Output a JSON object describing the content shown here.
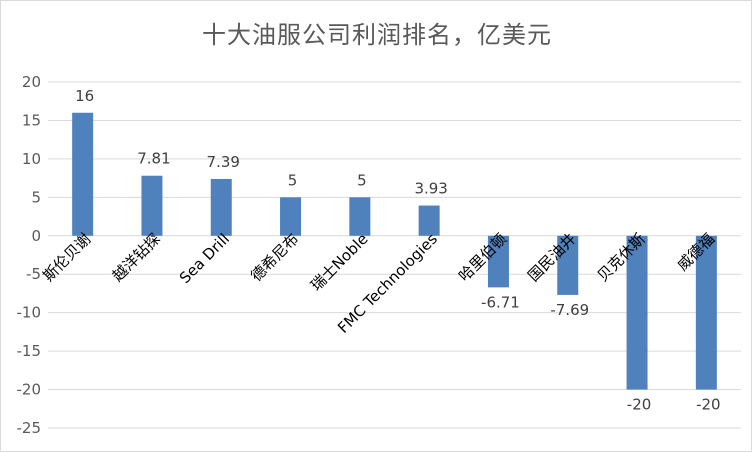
{
  "chart_data": {
    "type": "bar",
    "title": "十大油服公司利润排名，亿美元",
    "categories": [
      "斯伦贝谢",
      "越洋钻探",
      "Sea Drill",
      "德希尼布",
      "瑞士Noble",
      "FMC Technologies",
      "哈里伯顿",
      "国民油井",
      "贝克休斯",
      "威德福"
    ],
    "values": [
      16,
      7.81,
      7.39,
      5,
      5,
      3.93,
      -6.71,
      -7.69,
      -20,
      -20
    ],
    "data_labels": [
      "16",
      "7.81",
      "7.39",
      "5",
      "5",
      "3.93",
      "-6.71",
      "-7.69",
      "-20",
      "-20"
    ],
    "y_ticks": [
      "20",
      "15",
      "10",
      "5",
      "0",
      "-5",
      "-10",
      "-15",
      "-20",
      "-25"
    ],
    "ylim": [
      -25,
      20
    ],
    "grid": true,
    "bar_color": "#4f81bd",
    "grid_color": "#d9d9d9",
    "xlabel": "",
    "ylabel": ""
  }
}
